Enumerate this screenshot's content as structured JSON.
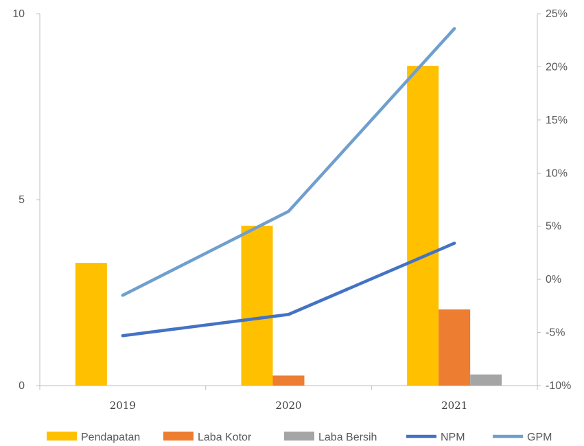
{
  "chart_data": {
    "type": "bar",
    "categories": [
      "2019",
      "2020",
      "2021"
    ],
    "y_left": {
      "lim": [
        0,
        10
      ],
      "ticks": [
        0,
        5,
        10
      ],
      "tick_labels": [
        "0",
        "5",
        "10"
      ]
    },
    "y_right": {
      "lim": [
        -10,
        25
      ],
      "ticks": [
        -10,
        -5,
        0,
        5,
        10,
        15,
        20,
        25
      ],
      "tick_labels": [
        "-10%",
        "-5%",
        "0%",
        "5%",
        "10%",
        "15%",
        "20%",
        "25%"
      ]
    },
    "bar_series": [
      {
        "name": "Pendapatan",
        "color": "#FFC000",
        "values": [
          3.3,
          4.3,
          8.6
        ]
      },
      {
        "name": "Laba Kotor",
        "color": "#ED7D31",
        "values": [
          0,
          0.27,
          2.05
        ]
      },
      {
        "name": "Laba Bersih",
        "color": "#A5A5A5",
        "values": [
          0,
          0,
          0.3
        ]
      }
    ],
    "line_series": [
      {
        "name": "NPM",
        "color": "#4472C4",
        "axis": "right",
        "values": [
          -5.3,
          -3.3,
          3.4
        ]
      },
      {
        "name": "GPM",
        "color": "#6F9FCF",
        "axis": "right",
        "values": [
          -1.5,
          6.4,
          23.6
        ]
      }
    ],
    "legend_position": "bottom",
    "grid": false
  }
}
